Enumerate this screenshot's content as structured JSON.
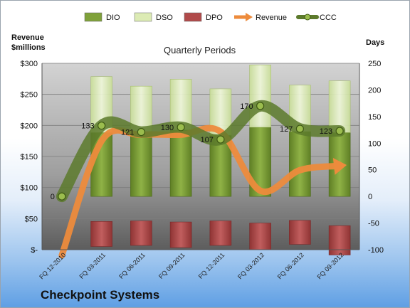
{
  "company": "Checkpoint Systems",
  "chart_data": {
    "type": "bar",
    "title": "Quarterly Periods",
    "left_axis_label": [
      "Revenue",
      "$millions"
    ],
    "right_axis_label": "Days",
    "categories": [
      "FQ 12-2010",
      "FQ 03-2011",
      "FQ 06-2011",
      "FQ 09-2011",
      "FQ 12-2011",
      "FQ 03-2012",
      "FQ 06-2012",
      "FQ 09-2012"
    ],
    "left_axis": {
      "min": 0,
      "max": 300,
      "ticks": [
        0,
        50,
        100,
        150,
        200,
        250,
        300
      ],
      "tick_labels": [
        "$-",
        "$50",
        "$100",
        "$150",
        "$200",
        "$250",
        "$300"
      ]
    },
    "right_axis": {
      "min": -100,
      "max": 250,
      "ticks": [
        -100,
        -50,
        0,
        50,
        100,
        150,
        200,
        250
      ],
      "tick_labels": [
        "-100",
        "-50",
        "0",
        "50",
        "100",
        "150",
        "200",
        "250"
      ]
    },
    "legend": {
      "position": "top",
      "items": [
        {
          "name": "DIO",
          "marker": "bar",
          "color": "#7fa13a"
        },
        {
          "name": "DSO",
          "marker": "bar",
          "color": "#dcebb4"
        },
        {
          "name": "DPO",
          "marker": "bar",
          "color": "#b04a4a"
        },
        {
          "name": "Revenue",
          "marker": "arrow",
          "color": "#ed8b3c"
        },
        {
          "name": "CCC",
          "marker": "line-dot",
          "color": "#5c7a2c"
        }
      ]
    },
    "series": [
      {
        "name": "DIO",
        "axis": "right",
        "values": [
          null,
          120,
          120,
          125,
          115,
          130,
          122,
          120
        ]
      },
      {
        "name": "DSO",
        "axis": "right",
        "values": [
          null,
          105,
          87,
          95,
          87,
          117,
          87,
          97
        ]
      },
      {
        "name": "DPO",
        "axis": "right",
        "values": [
          null,
          -47,
          -46,
          -48,
          -46,
          -50,
          -45,
          -55
        ]
      },
      {
        "name": "Revenue",
        "axis": "left",
        "values": [
          -10,
          175,
          185,
          185,
          190,
          95,
          128,
          135
        ]
      },
      {
        "name": "CCC",
        "axis": "right",
        "values": [
          0,
          133,
          121,
          130,
          107,
          170,
          127,
          123
        ],
        "labels": [
          "0",
          "133",
          "121",
          "130",
          "107",
          "170",
          "127",
          "123"
        ]
      }
    ],
    "colors": {
      "dio": "#7fa13a",
      "dso": "#dcebb4",
      "dpo": "#b04a4a",
      "revenue": "#ed8b3c",
      "ccc": "#5c7a2c"
    }
  }
}
